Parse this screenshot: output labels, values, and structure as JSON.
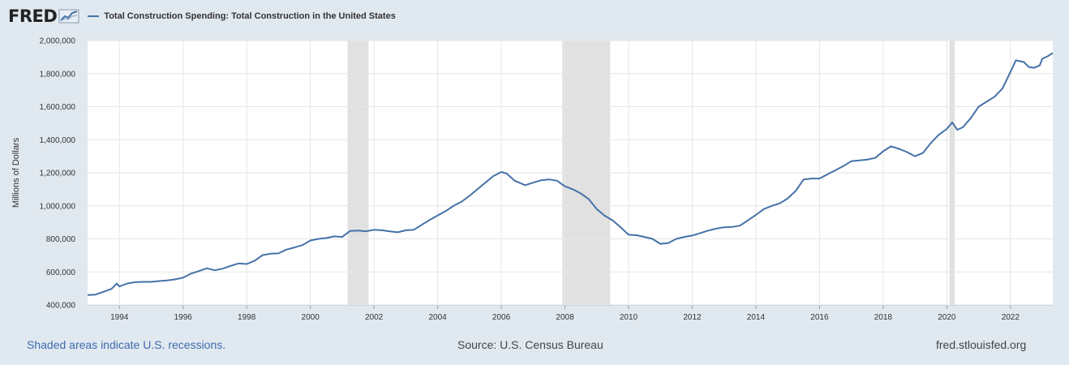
{
  "header": {
    "logo_text": "FRED",
    "logo_icon": "line-chart-icon"
  },
  "colors": {
    "background": "#e1e9f0",
    "plot_background": "#ffffff",
    "series_line": "#4572a7",
    "recession_shade": "#e1e1e1",
    "gridline": "#e6e6e6",
    "link": "#3e6bac"
  },
  "footer": {
    "recession_note": "Shaded areas indicate U.S. recessions.",
    "source": "Source: U.S. Census Bureau",
    "site": "fred.stlouisfed.org"
  },
  "chart_data": {
    "type": "line",
    "title": "Total Construction Spending: Total Construction in the United States",
    "xlabel": "",
    "ylabel": "Millions of Dollars",
    "xlim": [
      1993.0,
      2023.33
    ],
    "ylim": [
      400000,
      2000000
    ],
    "grid": true,
    "legend_position": "top-left",
    "x_ticks": [
      "1994",
      "1996",
      "1998",
      "2000",
      "2002",
      "2004",
      "2006",
      "2008",
      "2010",
      "2012",
      "2014",
      "2016",
      "2018",
      "2020",
      "2022"
    ],
    "y_ticks": [
      "400,000",
      "600,000",
      "800,000",
      "1,000,000",
      "1,200,000",
      "1,400,000",
      "1,600,000",
      "1,800,000",
      "2,000,000"
    ],
    "recessions": [
      {
        "start": 2001.17,
        "end": 2001.83
      },
      {
        "start": 2007.92,
        "end": 2009.42
      },
      {
        "start": 2020.08,
        "end": 2020.25
      }
    ],
    "series": [
      {
        "name": "Total Construction Spending: Total Construction in the United States",
        "x": [
          1993.0,
          1993.25,
          1993.5,
          1993.75,
          1993.92,
          1994.0,
          1994.25,
          1994.5,
          1994.75,
          1995.0,
          1995.25,
          1995.5,
          1995.75,
          1996.0,
          1996.25,
          1996.5,
          1996.75,
          1997.0,
          1997.25,
          1997.5,
          1997.75,
          1998.0,
          1998.25,
          1998.5,
          1998.75,
          1999.0,
          1999.25,
          1999.5,
          1999.75,
          2000.0,
          2000.25,
          2000.5,
          2000.75,
          2001.0,
          2001.25,
          2001.5,
          2001.75,
          2002.0,
          2002.25,
          2002.5,
          2002.75,
          2003.0,
          2003.25,
          2003.5,
          2003.75,
          2004.0,
          2004.25,
          2004.5,
          2004.75,
          2005.0,
          2005.25,
          2005.5,
          2005.75,
          2006.0,
          2006.17,
          2006.42,
          2006.75,
          2007.0,
          2007.25,
          2007.5,
          2007.75,
          2008.0,
          2008.25,
          2008.5,
          2008.75,
          2009.0,
          2009.25,
          2009.5,
          2009.75,
          2010.0,
          2010.25,
          2010.5,
          2010.75,
          2011.0,
          2011.25,
          2011.5,
          2011.75,
          2012.0,
          2012.25,
          2012.5,
          2012.75,
          2013.0,
          2013.25,
          2013.5,
          2013.75,
          2014.0,
          2014.25,
          2014.5,
          2014.75,
          2015.0,
          2015.25,
          2015.5,
          2015.75,
          2016.0,
          2016.25,
          2016.5,
          2016.75,
          2017.0,
          2017.25,
          2017.5,
          2017.75,
          2018.0,
          2018.25,
          2018.5,
          2018.75,
          2019.0,
          2019.25,
          2019.5,
          2019.75,
          2020.0,
          2020.17,
          2020.33,
          2020.5,
          2020.75,
          2021.0,
          2021.25,
          2021.5,
          2021.75,
          2022.0,
          2022.17,
          2022.42,
          2022.58,
          2022.75,
          2022.92,
          2023.0,
          2023.17,
          2023.33
        ],
        "values": [
          460000,
          463000,
          480000,
          497000,
          530000,
          512000,
          530000,
          538000,
          540000,
          540000,
          545000,
          548000,
          555000,
          565000,
          590000,
          605000,
          622000,
          610000,
          620000,
          637000,
          652000,
          648000,
          668000,
          702000,
          710000,
          712000,
          735000,
          748000,
          762000,
          790000,
          800000,
          805000,
          815000,
          812000,
          848000,
          850000,
          846000,
          855000,
          852000,
          845000,
          840000,
          852000,
          855000,
          885000,
          915000,
          942000,
          968000,
          1000000,
          1025000,
          1060000,
          1100000,
          1140000,
          1180000,
          1205000,
          1195000,
          1152000,
          1125000,
          1140000,
          1155000,
          1160000,
          1152000,
          1118000,
          1100000,
          1075000,
          1040000,
          980000,
          940000,
          912000,
          870000,
          825000,
          822000,
          812000,
          800000,
          770000,
          775000,
          800000,
          812000,
          820000,
          835000,
          850000,
          862000,
          870000,
          872000,
          880000,
          912000,
          945000,
          980000,
          1000000,
          1015000,
          1045000,
          1090000,
          1160000,
          1165000,
          1165000,
          1190000,
          1215000,
          1240000,
          1270000,
          1275000,
          1280000,
          1290000,
          1330000,
          1360000,
          1345000,
          1325000,
          1300000,
          1320000,
          1380000,
          1430000,
          1465000,
          1505000,
          1460000,
          1475000,
          1530000,
          1600000,
          1630000,
          1660000,
          1710000,
          1810000,
          1880000,
          1870000,
          1840000,
          1835000,
          1850000,
          1890000,
          1905000,
          1925000
        ]
      }
    ]
  }
}
